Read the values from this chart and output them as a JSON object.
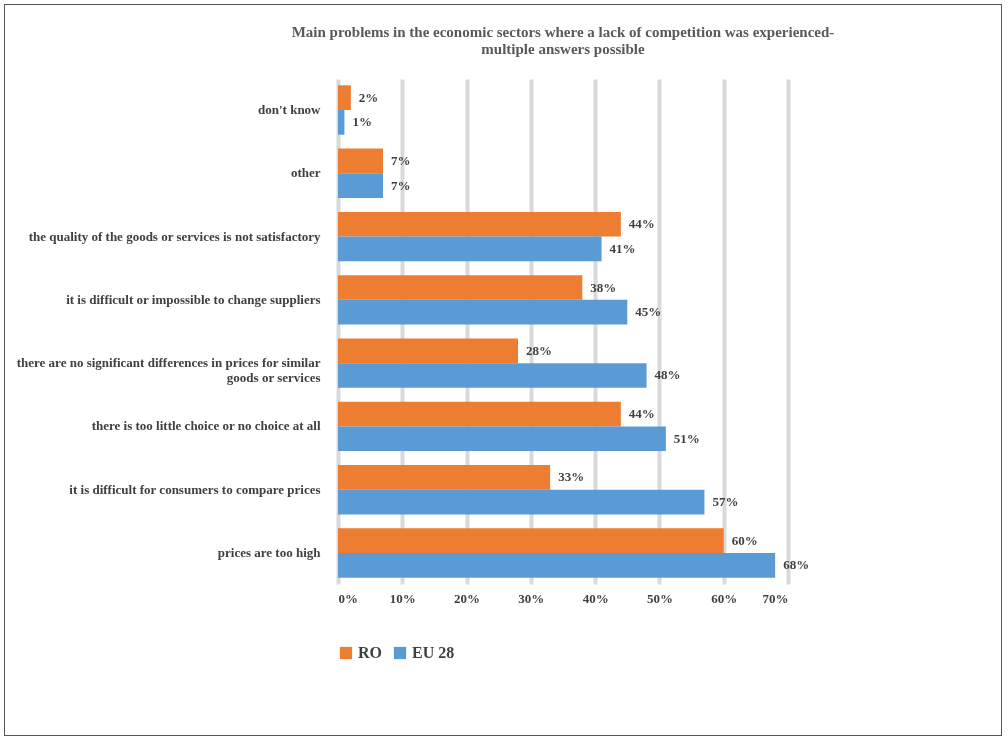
{
  "chart_data": {
    "type": "bar",
    "orientation": "horizontal",
    "title": "Main problems in the economic sectors  where a lack of competition was experienced- multiple answers possible",
    "categories": [
      "don't know",
      "other",
      "the quality of the goods or services is not satisfactory",
      "it is difficult or impossible to change suppliers",
      "there are no significant differences in prices for similar goods or services",
      "there is too little choice or no choice at all",
      "it is difficult for consumers to compare prices",
      "prices are too high"
    ],
    "series": [
      {
        "name": "RO",
        "color": "#ed7d31",
        "values": [
          2,
          7,
          44,
          38,
          28,
          44,
          33,
          60
        ],
        "value_labels": [
          "2%",
          "7%",
          "44%",
          "38%",
          "28%",
          "44%",
          "33%",
          "60%"
        ]
      },
      {
        "name": "EU 28",
        "color": "#5b9bd5",
        "values": [
          1,
          7,
          41,
          45,
          48,
          51,
          57,
          68
        ],
        "value_labels": [
          "1%",
          "7%",
          "41%",
          "45%",
          "48%",
          "51%",
          "57%",
          "68%"
        ]
      }
    ],
    "xlim": [
      0,
      70
    ],
    "xticks": [
      {
        "value": 0,
        "label": "0%"
      },
      {
        "value": 10,
        "label": "10%"
      },
      {
        "value": 20,
        "label": "20%"
      },
      {
        "value": 30,
        "label": "30%"
      },
      {
        "value": 40,
        "label": "40%"
      },
      {
        "value": 50,
        "label": "50%"
      },
      {
        "value": 60,
        "label": "60%"
      },
      {
        "value": 70,
        "label": "70%"
      }
    ],
    "grid": "x",
    "legend": "bottom"
  }
}
